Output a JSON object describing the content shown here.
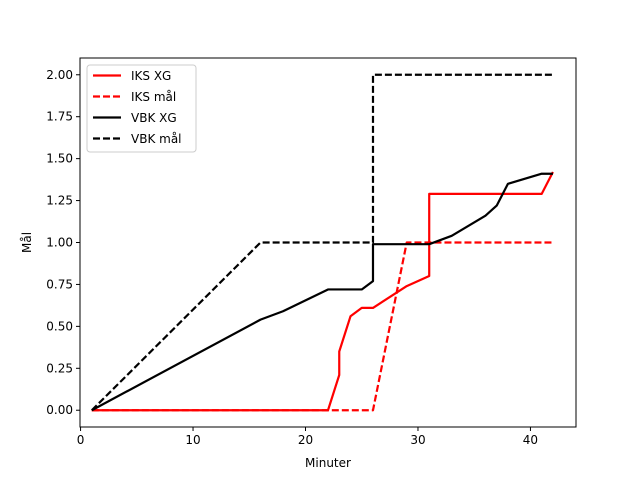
{
  "chart_data": {
    "type": "line",
    "title": "",
    "xlabel": "Minuter",
    "ylabel": "Mål",
    "xlim": [
      -0.05,
      44.05
    ],
    "ylim": [
      -0.1,
      2.1
    ],
    "xticks": [
      0,
      10,
      20,
      30,
      40
    ],
    "xtick_labels": [
      "0",
      "10",
      "20",
      "30",
      "40"
    ],
    "yticks": [
      0.0,
      0.25,
      0.5,
      0.75,
      1.0,
      1.25,
      1.5,
      1.75,
      2.0
    ],
    "ytick_labels": [
      "0.00",
      "0.25",
      "0.50",
      "0.75",
      "1.00",
      "1.25",
      "1.50",
      "1.75",
      "2.00"
    ],
    "grid": false,
    "legend_position": "top-left",
    "series": [
      {
        "name": "IKS XG",
        "color": "#ff0000",
        "style": "solid",
        "x": [
          1,
          22,
          23,
          23,
          24,
          25,
          26,
          29,
          31,
          31,
          41,
          42
        ],
        "y": [
          0,
          0,
          0.21,
          0.35,
          0.56,
          0.61,
          0.61,
          0.74,
          0.8,
          1.29,
          1.29,
          1.42
        ]
      },
      {
        "name": "IKS mål",
        "color": "#ff0000",
        "style": "dashed",
        "x": [
          1,
          26,
          29,
          42
        ],
        "y": [
          0,
          0,
          1,
          1
        ]
      },
      {
        "name": "VBK XG",
        "color": "#000000",
        "style": "solid",
        "x": [
          1,
          16,
          18,
          22,
          25,
          26,
          26,
          31,
          33,
          36,
          37,
          38,
          41,
          42
        ],
        "y": [
          0,
          0.54,
          0.59,
          0.72,
          0.72,
          0.77,
          0.99,
          0.99,
          1.04,
          1.16,
          1.22,
          1.35,
          1.41,
          1.41
        ]
      },
      {
        "name": "VBK mål",
        "color": "#000000",
        "style": "dashed",
        "x": [
          1,
          16,
          26,
          26,
          42
        ],
        "y": [
          0,
          1,
          1,
          2,
          2
        ]
      }
    ]
  }
}
